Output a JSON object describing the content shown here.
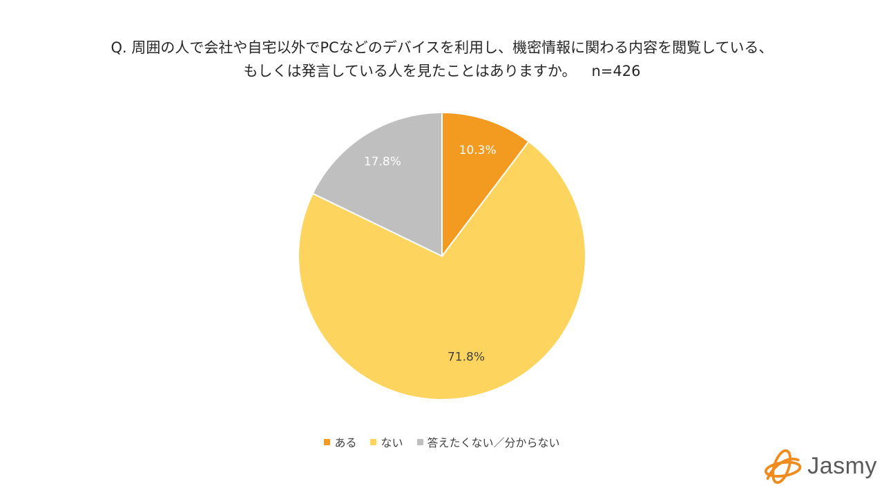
{
  "title": {
    "line1": "Q. 周囲の人で会社や自宅以外でPCなどのデバイスを利用し、機密情報に関わる内容を閲覧している、",
    "line2": "もしくは発言している人を見たことはありますか。",
    "sample": "n=426"
  },
  "chart_data": {
    "type": "pie",
    "title": "Q. 周囲の人で会社や自宅以外でPCなどのデバイスを利用し、機密情報に関わる内容を閲覧している、もしくは発言している人を見たことはありますか。 n=426",
    "start_angle": "12 o'clock, clockwise",
    "slices": [
      {
        "label": "ある",
        "value": 10.3,
        "display": "10.3%",
        "color": "#F39A20",
        "label_color": "#ffffff"
      },
      {
        "label": "ない",
        "value": 71.8,
        "display": "71.8%",
        "color": "#FDD55E",
        "label_color": "#404040"
      },
      {
        "label": "答えたくない／分からない",
        "value": 17.8,
        "display": "17.8%",
        "color": "#BFBFBF",
        "label_color": "#ffffff"
      }
    ],
    "legend_position": "bottom"
  },
  "logo": {
    "text": "Jasmy",
    "color": "#F08C1E"
  }
}
